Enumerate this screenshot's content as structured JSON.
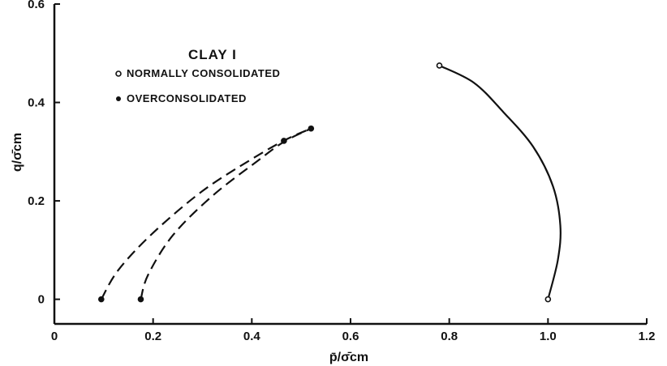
{
  "chart_data": {
    "type": "line",
    "title": "",
    "xlabel": "p̄/σ̄cm",
    "ylabel": "q/σ̄cm",
    "xlim": [
      0,
      1.2
    ],
    "ylim": [
      -0.05,
      0.6
    ],
    "xticks": [
      "0",
      "0.2",
      "0.4",
      "0.6",
      "0.8",
      "1.0",
      "1.2"
    ],
    "yticks": [
      "0",
      "0.2",
      "0.4",
      "0.6"
    ],
    "grid": false,
    "legend": {
      "title": "CLAY I",
      "placement": "top-left",
      "entries": [
        {
          "label": "NORMALLY CONSOLIDATED",
          "marker": "open-circle"
        },
        {
          "label": "OVERCONSOLIDATED",
          "marker": "filled-circle"
        }
      ]
    },
    "series": [
      {
        "group": "NORMALLY CONSOLIDATED",
        "style": "solid",
        "points": [
          [
            1.0,
            0.0
          ],
          [
            1.02,
            0.08
          ],
          [
            1.025,
            0.15
          ],
          [
            1.01,
            0.23
          ],
          [
            0.97,
            0.31
          ],
          [
            0.91,
            0.38
          ],
          [
            0.85,
            0.44
          ],
          [
            0.78,
            0.475
          ]
        ],
        "markers": [
          [
            1.0,
            0.0
          ],
          [
            0.78,
            0.475
          ]
        ]
      },
      {
        "group": "OVERCONSOLIDATED",
        "style": "dashed",
        "points": [
          [
            0.095,
            0.0
          ],
          [
            0.13,
            0.06
          ],
          [
            0.2,
            0.135
          ],
          [
            0.3,
            0.22
          ],
          [
            0.4,
            0.285
          ],
          [
            0.47,
            0.325
          ],
          [
            0.52,
            0.347
          ]
        ],
        "markers": [
          [
            0.095,
            0.0
          ]
        ]
      },
      {
        "group": "OVERCONSOLIDATED",
        "style": "dashed",
        "points": [
          [
            0.175,
            0.0
          ],
          [
            0.19,
            0.05
          ],
          [
            0.24,
            0.13
          ],
          [
            0.32,
            0.21
          ],
          [
            0.41,
            0.28
          ],
          [
            0.465,
            0.32
          ],
          [
            0.52,
            0.347
          ]
        ],
        "markers": [
          [
            0.175,
            0.0
          ],
          [
            0.465,
            0.322
          ],
          [
            0.52,
            0.347
          ]
        ]
      }
    ]
  }
}
